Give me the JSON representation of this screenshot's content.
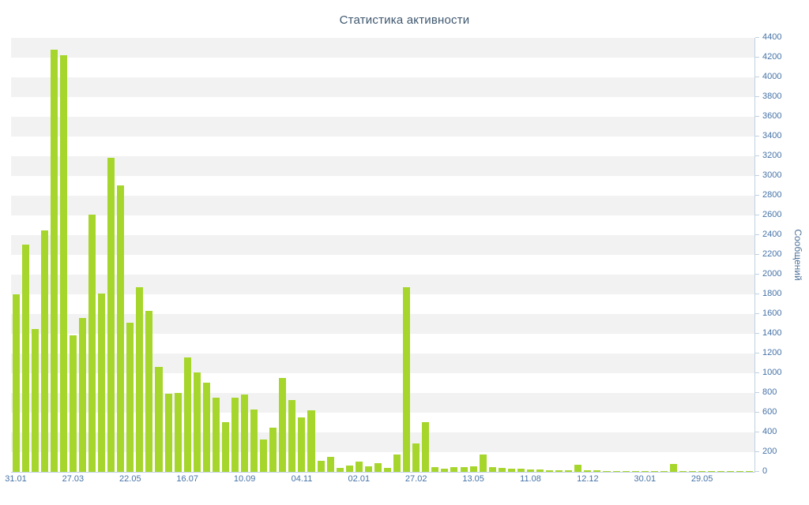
{
  "title": "Статистика активности",
  "colors": {
    "bar": "#a6d62c",
    "axis_text": "#4572a7",
    "title_text": "#3e576f",
    "band": "#f2f2f2",
    "axis_line": "#c0d0e0",
    "background": "#ffffff"
  },
  "chart_data": {
    "type": "bar",
    "title": "Статистика активности",
    "xlabel": "",
    "ylabel": "Сообщений",
    "ylim": [
      0,
      4400
    ],
    "y_tick_step": 200,
    "grid": "alternating horizontal bands, no gridlines",
    "legend_position": "none",
    "x_tick_labels": [
      "31.01",
      "27.03",
      "22.05",
      "16.07",
      "10.09",
      "04.11",
      "02.01",
      "27.02",
      "13.05",
      "11.08",
      "12.12",
      "30.01",
      "29.05"
    ],
    "x_tick_every": 6,
    "values": [
      1800,
      2300,
      1450,
      2450,
      4280,
      4220,
      1380,
      1560,
      2610,
      1810,
      3180,
      2900,
      1510,
      1870,
      1630,
      1060,
      790,
      800,
      1160,
      1010,
      900,
      750,
      500,
      750,
      780,
      630,
      330,
      450,
      950,
      730,
      550,
      620,
      110,
      150,
      40,
      60,
      105,
      55,
      90,
      40,
      175,
      1870,
      290,
      500,
      50,
      30,
      50,
      50,
      55,
      175,
      50,
      40,
      30,
      30,
      25,
      25,
      15,
      15,
      15,
      70,
      15,
      15,
      10,
      10,
      10,
      10,
      10,
      10,
      10,
      80,
      8,
      5,
      5,
      5,
      5,
      5,
      5,
      5
    ]
  }
}
